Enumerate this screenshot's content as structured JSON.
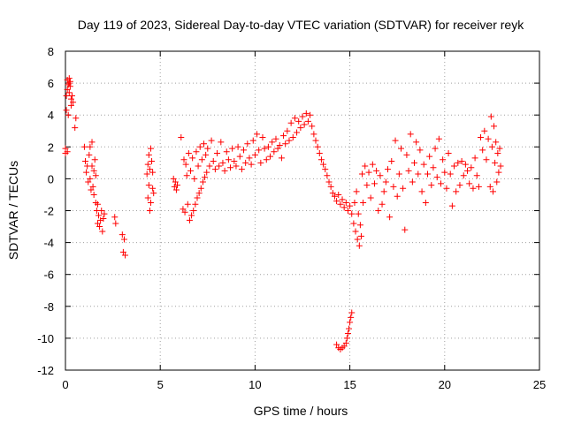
{
  "chart_data": {
    "type": "scatter",
    "title": "Day 119 of 2023, Sidereal Day-to-day VTEC variation (SDTVAR) for receiver reyk",
    "xlabel": "GPS time / hours",
    "ylabel": "SDTVAR / TECUs",
    "xlim": [
      0,
      25
    ],
    "ylim": [
      -12,
      8
    ],
    "xticks": [
      "0",
      "5",
      "10",
      "15",
      "20",
      "25"
    ],
    "yticks": [
      "8",
      "6",
      "4",
      "2",
      "0",
      "-2",
      "-4",
      "-6",
      "-8",
      "-10",
      "-12"
    ],
    "grid": true,
    "marker": "+",
    "series": [
      {
        "name": "SDTVAR",
        "color": "#ff0000",
        "points": [
          [
            0.0,
            1.6
          ],
          [
            0.0,
            1.9
          ],
          [
            0.05,
            5.2
          ],
          [
            0.05,
            4.3
          ],
          [
            0.1,
            6.2
          ],
          [
            0.1,
            5.6
          ],
          [
            0.1,
            1.7
          ],
          [
            0.15,
            5.9
          ],
          [
            0.15,
            4.0
          ],
          [
            0.2,
            6.3
          ],
          [
            0.2,
            6.0
          ],
          [
            0.2,
            5.4
          ],
          [
            0.25,
            5.8
          ],
          [
            0.25,
            6.1
          ],
          [
            0.3,
            5.0
          ],
          [
            0.3,
            4.6
          ],
          [
            0.35,
            5.2
          ],
          [
            0.4,
            4.8
          ],
          [
            0.5,
            3.2
          ],
          [
            0.55,
            3.8
          ],
          [
            1.0,
            2.0
          ],
          [
            1.05,
            1.1
          ],
          [
            1.1,
            0.4
          ],
          [
            1.15,
            0.8
          ],
          [
            1.2,
            -0.2
          ],
          [
            1.25,
            1.5
          ],
          [
            1.3,
            0.0
          ],
          [
            1.3,
            2.0
          ],
          [
            1.35,
            -0.7
          ],
          [
            1.4,
            0.8
          ],
          [
            1.4,
            2.3
          ],
          [
            1.45,
            -0.5
          ],
          [
            1.5,
            0.5
          ],
          [
            1.5,
            -1.0
          ],
          [
            1.55,
            1.2
          ],
          [
            1.6,
            -1.5
          ],
          [
            1.6,
            0.2
          ],
          [
            1.65,
            -2.0
          ],
          [
            1.7,
            -2.8
          ],
          [
            1.7,
            -1.6
          ],
          [
            1.75,
            -2.3
          ],
          [
            1.8,
            -3.0
          ],
          [
            1.85,
            -2.6
          ],
          [
            1.9,
            -2.0
          ],
          [
            1.95,
            -3.3
          ],
          [
            2.0,
            -2.5
          ],
          [
            2.05,
            -2.2
          ],
          [
            2.6,
            -2.4
          ],
          [
            2.65,
            -2.8
          ],
          [
            3.0,
            -3.5
          ],
          [
            3.05,
            -4.6
          ],
          [
            3.1,
            -3.8
          ],
          [
            3.15,
            -4.8
          ],
          [
            4.3,
            0.3
          ],
          [
            4.35,
            0.9
          ],
          [
            4.35,
            -1.2
          ],
          [
            4.4,
            1.5
          ],
          [
            4.4,
            -0.4
          ],
          [
            4.45,
            0.6
          ],
          [
            4.45,
            -2.0
          ],
          [
            4.5,
            1.9
          ],
          [
            4.5,
            -1.5
          ],
          [
            4.55,
            1.1
          ],
          [
            4.6,
            0.4
          ],
          [
            4.6,
            -0.6
          ],
          [
            4.65,
            -0.9
          ],
          [
            5.7,
            0.0
          ],
          [
            5.75,
            -0.5
          ],
          [
            5.8,
            -0.2
          ],
          [
            5.85,
            -0.7
          ],
          [
            5.9,
            -0.4
          ],
          [
            6.1,
            2.6
          ],
          [
            6.2,
            -1.9
          ],
          [
            6.25,
            1.2
          ],
          [
            6.3,
            -2.1
          ],
          [
            6.35,
            0.9
          ],
          [
            6.4,
            0.2
          ],
          [
            6.45,
            -1.6
          ],
          [
            6.5,
            1.6
          ],
          [
            6.55,
            -2.6
          ],
          [
            6.6,
            0.5
          ],
          [
            6.65,
            -2.3
          ],
          [
            6.7,
            1.3
          ],
          [
            6.75,
            -2.0
          ],
          [
            6.8,
            0.0
          ],
          [
            6.85,
            -1.6
          ],
          [
            6.9,
            1.7
          ],
          [
            6.95,
            -1.2
          ],
          [
            7.0,
            0.8
          ],
          [
            7.05,
            -0.9
          ],
          [
            7.1,
            2.0
          ],
          [
            7.15,
            -0.6
          ],
          [
            7.2,
            1.2
          ],
          [
            7.25,
            -0.2
          ],
          [
            7.3,
            2.2
          ],
          [
            7.35,
            0.1
          ],
          [
            7.4,
            1.5
          ],
          [
            7.45,
            0.4
          ],
          [
            7.5,
            1.9
          ],
          [
            7.6,
            0.8
          ],
          [
            7.7,
            2.4
          ],
          [
            7.8,
            1.1
          ],
          [
            7.9,
            0.6
          ],
          [
            8.0,
            1.6
          ],
          [
            8.1,
            0.8
          ],
          [
            8.2,
            2.3
          ],
          [
            8.3,
            1.0
          ],
          [
            8.4,
            0.5
          ],
          [
            8.5,
            1.7
          ],
          [
            8.6,
            1.2
          ],
          [
            8.7,
            0.7
          ],
          [
            8.8,
            1.9
          ],
          [
            8.9,
            1.1
          ],
          [
            9.0,
            0.8
          ],
          [
            9.1,
            2.0
          ],
          [
            9.2,
            1.4
          ],
          [
            9.3,
            0.6
          ],
          [
            9.4,
            1.8
          ],
          [
            9.5,
            1.0
          ],
          [
            9.6,
            2.2
          ],
          [
            9.7,
            1.3
          ],
          [
            9.8,
            0.9
          ],
          [
            9.9,
            2.4
          ],
          [
            10.0,
            1.5
          ],
          [
            10.1,
            2.8
          ],
          [
            10.2,
            1.8
          ],
          [
            10.3,
            1.0
          ],
          [
            10.4,
            2.6
          ],
          [
            10.5,
            1.9
          ],
          [
            10.6,
            1.2
          ],
          [
            10.7,
            2.0
          ],
          [
            10.8,
            1.4
          ],
          [
            10.9,
            2.3
          ],
          [
            11.0,
            1.7
          ],
          [
            11.1,
            2.5
          ],
          [
            11.2,
            1.9
          ],
          [
            11.3,
            2.1
          ],
          [
            11.4,
            1.3
          ],
          [
            11.5,
            2.7
          ],
          [
            11.6,
            2.2
          ],
          [
            11.7,
            3.0
          ],
          [
            11.8,
            2.4
          ],
          [
            11.9,
            3.5
          ],
          [
            12.0,
            2.6
          ],
          [
            12.1,
            3.8
          ],
          [
            12.2,
            2.9
          ],
          [
            12.3,
            3.6
          ],
          [
            12.4,
            3.2
          ],
          [
            12.5,
            3.9
          ],
          [
            12.6,
            3.4
          ],
          [
            12.7,
            4.1
          ],
          [
            12.8,
            3.6
          ],
          [
            12.9,
            4.0
          ],
          [
            13.0,
            3.3
          ],
          [
            13.1,
            2.8
          ],
          [
            13.2,
            2.4
          ],
          [
            13.3,
            2.0
          ],
          [
            13.4,
            1.6
          ],
          [
            13.5,
            1.2
          ],
          [
            13.6,
            0.9
          ],
          [
            13.7,
            0.6
          ],
          [
            13.8,
            0.2
          ],
          [
            13.9,
            -0.2
          ],
          [
            14.0,
            -0.5
          ],
          [
            14.1,
            -0.9
          ],
          [
            14.2,
            -1.1
          ],
          [
            14.3,
            -1.4
          ],
          [
            14.4,
            -1.0
          ],
          [
            14.5,
            -1.6
          ],
          [
            14.6,
            -1.3
          ],
          [
            14.7,
            -1.8
          ],
          [
            14.8,
            -1.5
          ],
          [
            14.9,
            -2.0
          ],
          [
            15.0,
            -1.7
          ],
          [
            15.1,
            -2.2
          ],
          [
            15.2,
            -2.8
          ],
          [
            15.25,
            -1.5
          ],
          [
            15.3,
            -3.3
          ],
          [
            15.35,
            -0.8
          ],
          [
            15.4,
            -3.8
          ],
          [
            15.45,
            -2.2
          ],
          [
            15.5,
            -4.2
          ],
          [
            15.55,
            -2.9
          ],
          [
            15.6,
            -3.6
          ],
          [
            15.65,
            0.3
          ],
          [
            15.7,
            -1.5
          ],
          [
            15.8,
            0.8
          ],
          [
            15.9,
            -0.4
          ],
          [
            14.3,
            -10.4
          ],
          [
            14.4,
            -10.6
          ],
          [
            14.5,
            -10.7
          ],
          [
            14.6,
            -10.6
          ],
          [
            14.7,
            -10.5
          ],
          [
            14.8,
            -10.3
          ],
          [
            14.85,
            -10.0
          ],
          [
            14.9,
            -9.7
          ],
          [
            14.95,
            -9.4
          ],
          [
            15.0,
            -9.0
          ],
          [
            15.05,
            -8.7
          ],
          [
            15.1,
            -8.4
          ],
          [
            16.0,
            0.4
          ],
          [
            16.1,
            -1.2
          ],
          [
            16.2,
            0.9
          ],
          [
            16.3,
            -0.3
          ],
          [
            16.4,
            0.5
          ],
          [
            16.5,
            -2.0
          ],
          [
            16.6,
            0.2
          ],
          [
            16.7,
            -1.6
          ],
          [
            16.8,
            -0.8
          ],
          [
            16.9,
            -0.2
          ],
          [
            17.0,
            0.6
          ],
          [
            17.1,
            -2.4
          ],
          [
            17.2,
            1.1
          ],
          [
            17.3,
            -0.5
          ],
          [
            17.4,
            2.4
          ],
          [
            17.5,
            -1.1
          ],
          [
            17.6,
            0.3
          ],
          [
            17.7,
            1.9
          ],
          [
            17.8,
            -0.6
          ],
          [
            17.9,
            -3.2
          ],
          [
            18.0,
            1.5
          ],
          [
            18.1,
            0.5
          ],
          [
            18.2,
            2.8
          ],
          [
            18.3,
            -0.2
          ],
          [
            18.4,
            1.0
          ],
          [
            18.5,
            2.3
          ],
          [
            18.6,
            0.3
          ],
          [
            18.7,
            1.8
          ],
          [
            18.8,
            -0.8
          ],
          [
            18.9,
            0.9
          ],
          [
            19.0,
            -1.5
          ],
          [
            19.1,
            0.3
          ],
          [
            19.2,
            1.4
          ],
          [
            19.3,
            -0.4
          ],
          [
            19.4,
            0.7
          ],
          [
            19.5,
            1.9
          ],
          [
            19.6,
            0.1
          ],
          [
            19.7,
            2.5
          ],
          [
            19.8,
            -0.3
          ],
          [
            19.9,
            1.2
          ],
          [
            20.0,
            0.4
          ],
          [
            20.1,
            -0.6
          ],
          [
            20.2,
            1.6
          ],
          [
            20.3,
            0.3
          ],
          [
            20.4,
            -1.7
          ],
          [
            20.5,
            0.8
          ],
          [
            20.6,
            -0.8
          ],
          [
            20.7,
            1.0
          ],
          [
            20.8,
            -0.4
          ],
          [
            20.9,
            1.1
          ],
          [
            21.0,
            0.2
          ],
          [
            21.1,
            0.9
          ],
          [
            21.2,
            0.5
          ],
          [
            21.3,
            -0.3
          ],
          [
            21.4,
            0.7
          ],
          [
            21.5,
            -0.6
          ],
          [
            21.6,
            1.3
          ],
          [
            21.7,
            0.2
          ],
          [
            21.8,
            -0.5
          ],
          [
            21.9,
            2.6
          ],
          [
            22.0,
            1.8
          ],
          [
            22.1,
            3.0
          ],
          [
            22.2,
            1.2
          ],
          [
            22.3,
            2.5
          ],
          [
            22.4,
            -0.5
          ],
          [
            22.45,
            3.9
          ],
          [
            22.5,
            2.0
          ],
          [
            22.55,
            -0.8
          ],
          [
            22.6,
            3.3
          ],
          [
            22.65,
            1.0
          ],
          [
            22.7,
            2.3
          ],
          [
            22.75,
            -0.2
          ],
          [
            22.8,
            1.6
          ],
          [
            22.85,
            0.4
          ],
          [
            22.9,
            1.9
          ],
          [
            22.95,
            0.8
          ]
        ]
      }
    ]
  }
}
